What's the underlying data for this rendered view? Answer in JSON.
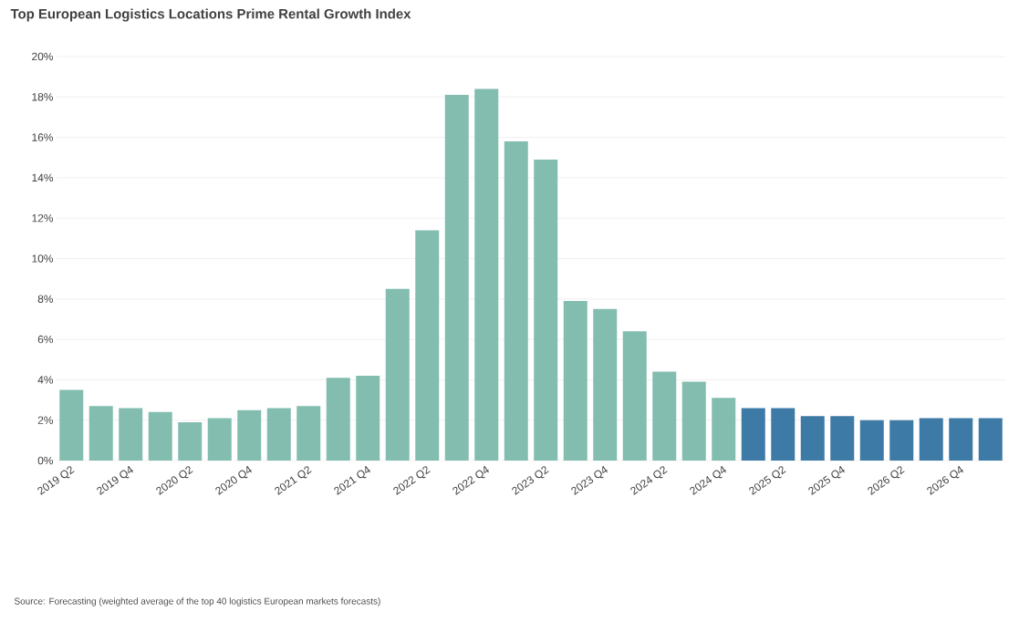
{
  "chart_data": {
    "type": "bar",
    "title": "Top European Logistics Locations Prime Rental Growth Index",
    "categories": [
      "2019 Q2",
      null,
      "2019 Q4",
      null,
      "2020 Q2",
      null,
      "2020 Q4",
      null,
      "2021 Q2",
      null,
      "2021 Q4",
      null,
      "2022 Q2",
      null,
      "2022 Q4",
      null,
      "2023 Q2",
      null,
      "2023 Q4",
      null,
      "2024 Q2",
      null,
      "2024 Q4",
      null,
      "2025 Q2",
      null,
      "2025 Q4",
      null,
      "2026 Q2",
      null,
      "2026 Q4",
      null
    ],
    "values": [
      3.5,
      2.7,
      2.6,
      2.4,
      1.9,
      2.1,
      2.5,
      2.6,
      2.7,
      4.1,
      4.2,
      8.5,
      11.4,
      18.1,
      18.4,
      15.8,
      14.9,
      7.9,
      7.5,
      6.4,
      4.4,
      3.9,
      3.1,
      2.6,
      2.6,
      2.2,
      2.2,
      2.0,
      2.0,
      2.1,
      2.1,
      2.1
    ],
    "colors": [
      "#82bdb0",
      "#82bdb0",
      "#82bdb0",
      "#82bdb0",
      "#82bdb0",
      "#82bdb0",
      "#82bdb0",
      "#82bdb0",
      "#82bdb0",
      "#82bdb0",
      "#82bdb0",
      "#82bdb0",
      "#82bdb0",
      "#82bdb0",
      "#82bdb0",
      "#82bdb0",
      "#82bdb0",
      "#82bdb0",
      "#82bdb0",
      "#82bdb0",
      "#82bdb0",
      "#82bdb0",
      "#82bdb0",
      "#3d7aa6",
      "#3d7aa6",
      "#3d7aa6",
      "#3d7aa6",
      "#3d7aa6",
      "#3d7aa6",
      "#3d7aa6",
      "#3d7aa6",
      "#3d7aa6"
    ],
    "ylim": [
      0,
      20
    ],
    "yticks": [
      {
        "value": 0,
        "label": "0%"
      },
      {
        "value": 2,
        "label": "2%"
      },
      {
        "value": 4,
        "label": "4%"
      },
      {
        "value": 6,
        "label": "6%"
      },
      {
        "value": 8,
        "label": "8%"
      },
      {
        "value": 10,
        "label": "10%"
      },
      {
        "value": 12,
        "label": "12%"
      },
      {
        "value": 14,
        "label": "14%"
      },
      {
        "value": 16,
        "label": "16%"
      },
      {
        "value": 18,
        "label": "18%"
      },
      {
        "value": 20,
        "label": "20%"
      }
    ],
    "grid": "y",
    "annotations": [
      "Source: Forecasting (weighted average of the top 40 logistics European markets forecasts)"
    ]
  }
}
